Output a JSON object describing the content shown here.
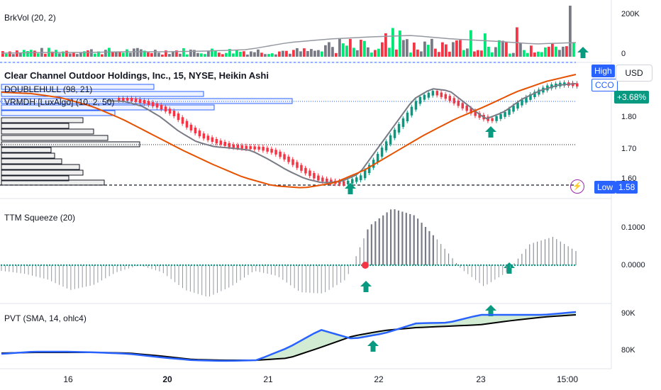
{
  "panes": {
    "volume": {
      "label": "BrkVol (20, 2)",
      "axis": [
        "200K",
        "0"
      ]
    },
    "price": {
      "title": "Clear Channel Outdoor Holdings, Inc., 15, NYSE, Heikin Ashi",
      "indicators": [
        "DOUBLEHULL (98, 21)",
        "VRMDH [LuxAlgo] (10, 2, 50)"
      ],
      "axis": [
        "1.80",
        "1.70",
        "1.60"
      ],
      "high_tag": "High",
      "symbol_tag": "CCO",
      "change_tag": "+3.68%",
      "low_tag": "Low",
      "low_value": "1.58",
      "currency": "USD"
    },
    "ttm": {
      "label": "TTM Squeeze (20)",
      "axis": [
        "0.1000",
        "0.0000"
      ]
    },
    "pvt": {
      "label": "PVT (SMA, 14, ohlc4)",
      "axis": [
        "90K",
        "80K"
      ]
    }
  },
  "time_axis": [
    "16",
    "20",
    "21",
    "22",
    "23",
    "15:00"
  ],
  "colors": {
    "up": "#089981",
    "down": "#f23645",
    "vol_up": "#00e676",
    "vol_down": "#f23645",
    "vol_neutral": "#787b86",
    "hull": "#787b86",
    "slow_ma": "#e65100",
    "tag_blue": "#2962ff",
    "arrow": "#089981",
    "pvt_line": "#2962ff",
    "pvt_sma": "#000000"
  },
  "icons": [
    "up-arrow-icon",
    "lightning-icon"
  ]
}
